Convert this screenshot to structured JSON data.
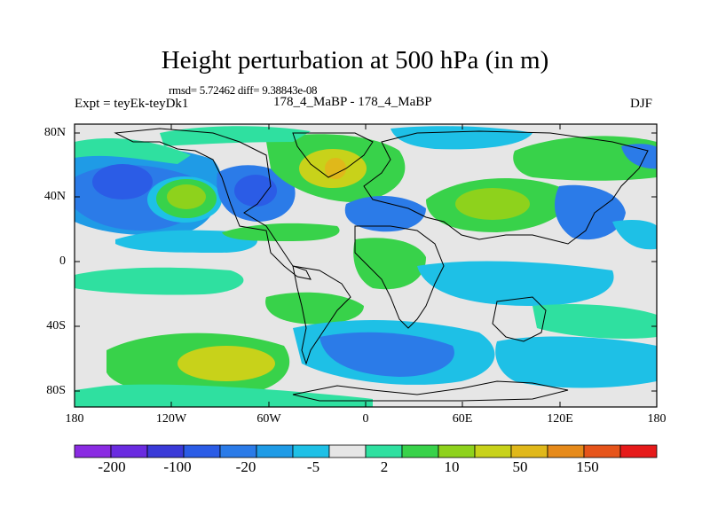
{
  "title": "Height perturbation at 500 hPa (in m)",
  "stats": "rmsd= 5.72462 diff= 9.38843e-08",
  "experiment": "Expt = teyEk-teyDk1",
  "runs": "178_4_MaBP - 178_4_MaBP",
  "season": "DJF",
  "map": {
    "lon_range": [
      -180,
      180
    ],
    "lat_range": [
      -90,
      90
    ],
    "x_ticks": [
      "180",
      "120W",
      "60W",
      "0",
      "60E",
      "120E",
      "180"
    ],
    "y_ticks": [
      "80N",
      "40N",
      "0",
      "40S",
      "80S"
    ],
    "background_color": "#e6e6e6",
    "contour_anomalies": [
      {
        "lon": -155,
        "lat": 48,
        "value": -20
      },
      {
        "lon": -115,
        "lat": 38,
        "value": 10
      },
      {
        "lon": -65,
        "lat": 42,
        "value": -20
      },
      {
        "lon": -20,
        "lat": 58,
        "value": 50
      },
      {
        "lon": 25,
        "lat": 62,
        "value": -5
      },
      {
        "lon": 90,
        "lat": 38,
        "value": 50
      },
      {
        "lon": 60,
        "lat": 55,
        "value": 2
      },
      {
        "lon": -95,
        "lat": -62,
        "value": 10
      },
      {
        "lon": 40,
        "lat": -62,
        "value": -20
      }
    ]
  },
  "colorbar": {
    "colors": [
      "#8a2be2",
      "#6a2be0",
      "#3a3ad8",
      "#2b5ce6",
      "#2b7be8",
      "#1f9be6",
      "#1ec0e6",
      "#e6e6e6",
      "#2fe0a0",
      "#38d24a",
      "#8ed21c",
      "#c8d21a",
      "#e0b81a",
      "#e68a1a",
      "#e6541a",
      "#e61a1a"
    ],
    "labels": [
      "-200",
      "-100",
      "-20",
      "-5",
      "2",
      "10",
      "50",
      "150"
    ]
  }
}
